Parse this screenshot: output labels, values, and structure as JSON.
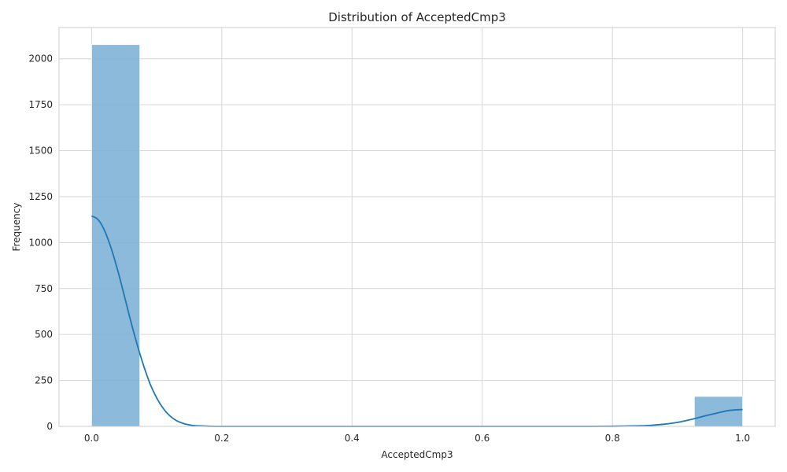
{
  "chart_data": {
    "type": "bar",
    "title": "Distribution of AcceptedCmp3",
    "xlabel": "AcceptedCmp3",
    "ylabel": "Frequency",
    "xlim": [
      -0.05,
      1.05
    ],
    "ylim": [
      0,
      2170
    ],
    "xticks": [
      0.0,
      0.2,
      0.4,
      0.6,
      0.8,
      1.0
    ],
    "xtick_labels": [
      "0.0",
      "0.2",
      "0.4",
      "0.6",
      "0.8",
      "1.0"
    ],
    "yticks": [
      0,
      250,
      500,
      750,
      1000,
      1250,
      1500,
      1750,
      2000
    ],
    "ytick_labels": [
      "0",
      "250",
      "500",
      "750",
      "1000",
      "1250",
      "1500",
      "1750",
      "2000"
    ],
    "grid": true,
    "bars": [
      {
        "x0": 0.0,
        "x1": 0.0741,
        "value": 2077
      },
      {
        "x0": 0.9259,
        "x1": 1.0,
        "value": 163
      }
    ],
    "kde": {
      "x": [
        0.0,
        0.01,
        0.02,
        0.03,
        0.04,
        0.05,
        0.06,
        0.07,
        0.08,
        0.09,
        0.1,
        0.11,
        0.12,
        0.13,
        0.14,
        0.15,
        0.16,
        0.18,
        0.2,
        0.25,
        0.3,
        0.4,
        0.5,
        0.6,
        0.7,
        0.75,
        0.8,
        0.84,
        0.86,
        0.88,
        0.9,
        0.92,
        0.94,
        0.96,
        0.98,
        1.0
      ],
      "y": [
        1145,
        1125,
        1065,
        970,
        850,
        715,
        575,
        445,
        330,
        230,
        155,
        98,
        58,
        32,
        17,
        8,
        4,
        1,
        0,
        0,
        0,
        0,
        0,
        0,
        0,
        0,
        1,
        3,
        6,
        12,
        22,
        37,
        55,
        72,
        87,
        92
      ]
    },
    "colors": {
      "bar_fill": "#7fb2d6",
      "bar_opacity": 0.9,
      "kde_line": "#1f77b4",
      "grid": "#d6d6d6",
      "spine": "#cccccc"
    }
  }
}
